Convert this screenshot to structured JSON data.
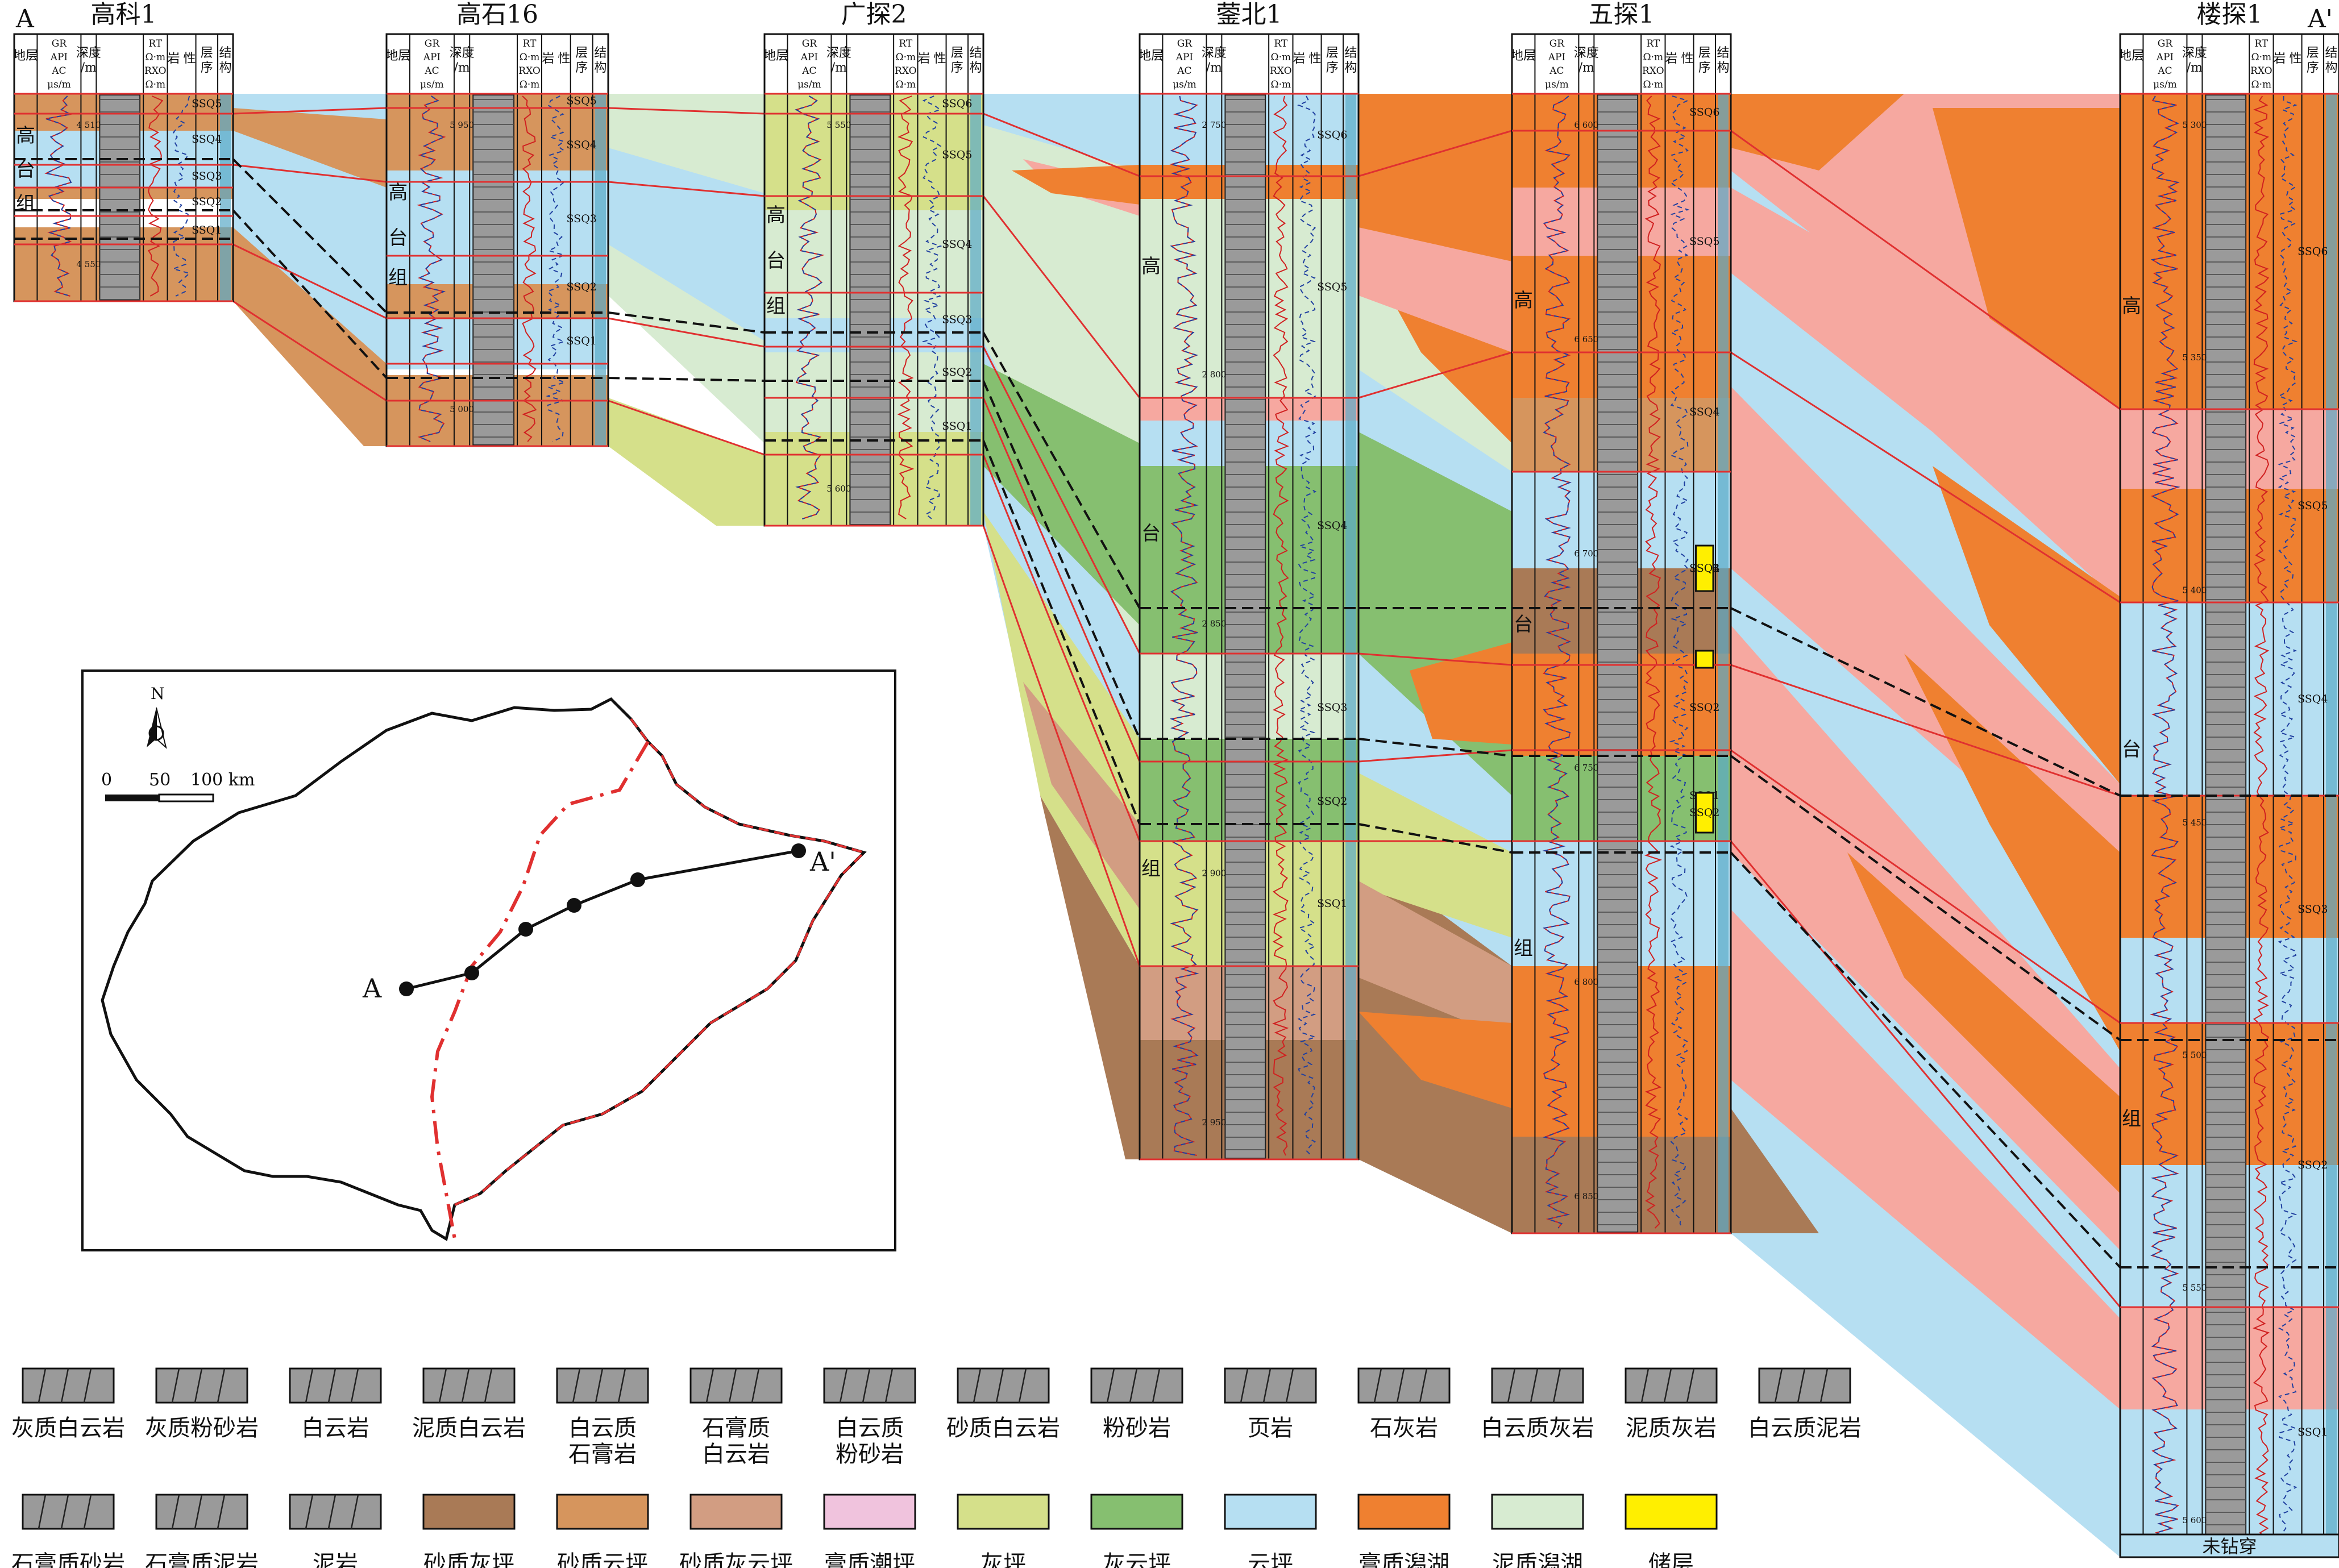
{
  "section": {
    "ends": [
      "A",
      "A'"
    ],
    "wells": [
      {
        "name": "高科1",
        "formation": [
          "高",
          "台",
          "组"
        ],
        "ssq": [
          "SSQ5",
          "SSQ4",
          "SSQ3",
          "SSQ2",
          "SSQ1"
        ],
        "depths": [
          "4 510",
          "4 550"
        ]
      },
      {
        "name": "高石16",
        "formation": [
          "高",
          "台",
          "组"
        ],
        "ssq": [
          "SSQ5",
          "SSQ4",
          "SSQ3",
          "SSQ2",
          "SSQ1"
        ],
        "depths": [
          "5 950",
          "5 000"
        ]
      },
      {
        "name": "广探2",
        "formation": [
          "高",
          "台",
          "组"
        ],
        "ssq": [
          "SSQ6",
          "SSQ5",
          "SSQ4",
          "SSQ3",
          "SSQ2",
          "SSQ1"
        ],
        "depths": [
          "5 550",
          "5 600"
        ]
      },
      {
        "name": "蓥北1",
        "formation": [
          "高",
          "台",
          "组"
        ],
        "ssq": [
          "SSQ6",
          "SSQ5",
          "SSQ4",
          "SSQ3",
          "SSQ2",
          "SSQ1"
        ],
        "depths": [
          "2 750",
          "2 800",
          "2 850",
          "2 900",
          "2 950"
        ]
      },
      {
        "name": "五探1",
        "formation": [
          "高",
          "台",
          "组"
        ],
        "ssq": [
          "SSQ6",
          "SSQ5",
          "SSQ4",
          "SSQ3",
          "SSQ2",
          "SSQ1"
        ],
        "depths": [
          "6 600",
          "6 650",
          "6 700",
          "6 750",
          "6 800",
          "6 850"
        ],
        "reservoir_labels": [
          "SSQ4",
          "SSQ2"
        ]
      },
      {
        "name": "楼探1",
        "formation": [
          "高",
          "台",
          "组"
        ],
        "ssq": [
          "SSQ6",
          "SSQ5",
          "SSQ4",
          "SSQ3",
          "SSQ2",
          "SSQ1"
        ],
        "depths": [
          "5 300",
          "5 350",
          "5 400",
          "5 450",
          "5 500",
          "5 550",
          "5 600"
        ],
        "bottom_note": "未钻穿"
      }
    ],
    "track_headers": {
      "strat": "地层",
      "curve1": [
        "GR",
        "API",
        "AC",
        "μs/m"
      ],
      "depth": [
        "深度",
        "/m"
      ],
      "curve2": [
        "RT",
        "Ω·m",
        "RXO",
        "Ω·m"
      ],
      "litho": [
        "岩",
        "性"
      ],
      "seq": [
        "层",
        "序"
      ],
      "struct": [
        "结",
        "构"
      ]
    }
  },
  "map": {
    "north": "N",
    "scale_labels": [
      "0",
      "50",
      "100 km"
    ],
    "point_a": "A",
    "point_a2": "A'"
  },
  "legend": {
    "lithology": [
      {
        "label": "灰质白云岩",
        "icon": "limy-dolomite"
      },
      {
        "label": "灰质粉砂岩",
        "icon": "limy-siltstone"
      },
      {
        "label": "白云岩",
        "icon": "dolomite"
      },
      {
        "label": "泥质白云岩",
        "icon": "argillaceous-dolomite"
      },
      {
        "label": "白云质\n石膏岩",
        "icon": "dolomitic-gypsum"
      },
      {
        "label": "石膏质\n白云岩",
        "icon": "gypsiferous-dolomite"
      },
      {
        "label": "白云质\n粉砂岩",
        "icon": "dolomitic-siltstone"
      },
      {
        "label": "砂质白云岩",
        "icon": "sandy-dolomite"
      },
      {
        "label": "粉砂岩",
        "icon": "siltstone"
      },
      {
        "label": "页岩",
        "icon": "shale"
      },
      {
        "label": "石灰岩",
        "icon": "limestone"
      },
      {
        "label": "白云质灰岩",
        "icon": "dolomitic-limestone"
      },
      {
        "label": "泥质灰岩",
        "icon": "argillaceous-limestone"
      },
      {
        "label": "白云质泥岩",
        "icon": "dolomitic-mudstone"
      },
      {
        "label": "石膏质砂岩",
        "icon": "gypsiferous-sandstone"
      },
      {
        "label": "石膏质泥岩",
        "icon": "gypsiferous-mudstone"
      },
      {
        "label": "泥岩",
        "icon": "mudstone"
      }
    ],
    "facies": [
      {
        "label": "砂质灰坪",
        "color": "#a97a56"
      },
      {
        "label": "砂质云坪",
        "color": "#d6955d"
      },
      {
        "label": "砂质灰云坪",
        "color": "#d29d82"
      },
      {
        "label": "膏质潮坪",
        "color": "#f0c3dd"
      },
      {
        "label": "灰坪",
        "color": "#d5e08a"
      },
      {
        "label": "灰云坪",
        "color": "#86bf70"
      },
      {
        "label": "云坪",
        "color": "#b6dff2"
      },
      {
        "label": "膏质潟湖",
        "color": "#ef8030"
      },
      {
        "label": "泥质潟湖",
        "color": "#d7ebd1"
      },
      {
        "label": "储层",
        "color": "#ffef00"
      }
    ]
  },
  "colors": {
    "pink": "#f6a8a0",
    "boundary": "#e03030"
  }
}
